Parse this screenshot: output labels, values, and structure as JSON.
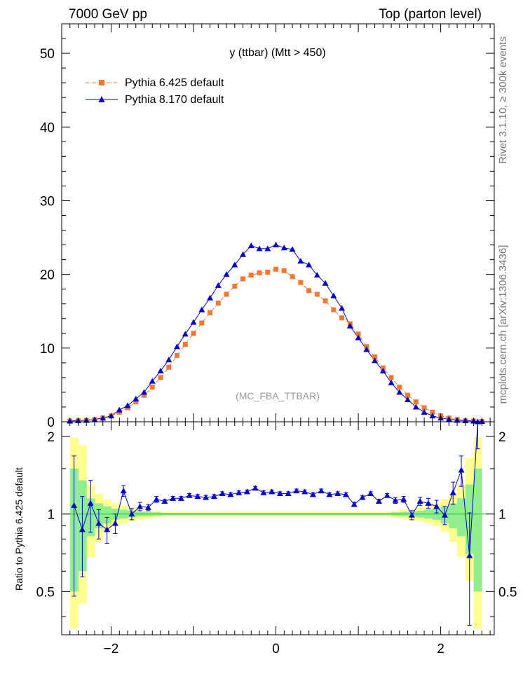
{
  "header": {
    "left": "7000 GeV pp",
    "right": "Top (parton level)"
  },
  "side_labels": {
    "rivet": "Rivet 3.1.10, ≥ 300k events",
    "mcplots": "mcplots.cern.ch [arXiv:1306.3436]"
  },
  "colors": {
    "pythia6": "#f07830",
    "pythia8": "#0000cc",
    "band_inner": "#90ee90",
    "band_outer": "#ffff90",
    "ratio_line": "#33cc33"
  },
  "chart_data": [
    {
      "type": "line",
      "title": "y (ttbar) (Mtt > 450)",
      "watermark": "(MC_FBA_TTBAR)",
      "xlim": [
        -2.6,
        2.65
      ],
      "ylim": [
        0,
        54
      ],
      "yticks": [
        0,
        10,
        20,
        30,
        40,
        50
      ],
      "yticklabels": [
        "0",
        "10",
        "20",
        "30",
        "40",
        "50"
      ],
      "legend": "top-left",
      "x": [
        -2.5,
        -2.4,
        -2.3,
        -2.2,
        -2.1,
        -2.0,
        -1.9,
        -1.8,
        -1.7,
        -1.6,
        -1.5,
        -1.4,
        -1.3,
        -1.2,
        -1.1,
        -1.0,
        -0.9,
        -0.8,
        -0.7,
        -0.6,
        -0.5,
        -0.4,
        -0.3,
        -0.2,
        -0.1,
        0.0,
        0.1,
        0.2,
        0.3,
        0.4,
        0.5,
        0.6,
        0.7,
        0.8,
        0.9,
        1.0,
        1.1,
        1.2,
        1.3,
        1.4,
        1.5,
        1.6,
        1.7,
        1.8,
        1.9,
        2.0,
        2.1,
        2.2,
        2.3,
        2.4,
        2.5
      ],
      "series": [
        {
          "name": "Pythia 6.425 default",
          "marker": "square",
          "values": [
            0.1,
            0.15,
            0.2,
            0.3,
            0.5,
            0.8,
            1.3,
            1.9,
            2.7,
            3.6,
            4.7,
            6.0,
            7.4,
            9.0,
            10.5,
            12.0,
            13.4,
            14.8,
            16.1,
            17.3,
            18.4,
            19.4,
            19.9,
            20.2,
            20.3,
            20.7,
            20.5,
            19.7,
            18.9,
            17.8,
            17.3,
            16.4,
            15.2,
            14.1,
            13.3,
            11.9,
            10.2,
            8.8,
            7.3,
            6.0,
            4.7,
            3.6,
            2.7,
            1.9,
            1.3,
            0.8,
            0.5,
            0.3,
            0.15,
            0.1,
            0.05
          ]
        },
        {
          "name": "Pythia 8.170 default",
          "marker": "triangle",
          "values": [
            0.1,
            0.15,
            0.2,
            0.3,
            0.5,
            0.8,
            1.6,
            2.2,
            3.1,
            4.0,
            5.5,
            6.9,
            8.4,
            10.2,
            11.9,
            13.5,
            15.2,
            16.8,
            18.5,
            20.0,
            21.3,
            22.7,
            23.9,
            23.5,
            23.5,
            24.0,
            23.6,
            23.4,
            21.8,
            21.3,
            19.9,
            18.8,
            17.1,
            15.4,
            13.0,
            11.4,
            9.8,
            8.3,
            6.9,
            5.3,
            4.0,
            3.0,
            2.0,
            1.3,
            0.8,
            0.5,
            0.35,
            0.2,
            0.15,
            0.1,
            0.05
          ]
        }
      ]
    },
    {
      "type": "line",
      "ylabel": "Ratio to Pythia 6.425 default",
      "xlim": [
        -2.6,
        2.65
      ],
      "ylim": [
        0.34,
        2.28
      ],
      "xticks": [
        -2,
        0,
        2
      ],
      "xticklabels": [
        "−2",
        "0",
        "2"
      ],
      "yticks": [
        0.5,
        1,
        2
      ],
      "yticklabels": [
        "0.5",
        "1",
        "2"
      ],
      "x": [
        -2.45,
        -2.35,
        -2.25,
        -2.15,
        -2.05,
        -1.95,
        -1.85,
        -1.75,
        -1.65,
        -1.55,
        -1.45,
        -1.35,
        -1.25,
        -1.15,
        -1.05,
        -0.95,
        -0.85,
        -0.75,
        -0.65,
        -0.55,
        -0.45,
        -0.35,
        -0.25,
        -0.15,
        -0.05,
        0.05,
        0.15,
        0.25,
        0.35,
        0.45,
        0.55,
        0.65,
        0.75,
        0.85,
        0.95,
        1.05,
        1.15,
        1.25,
        1.35,
        1.45,
        1.55,
        1.65,
        1.75,
        1.85,
        1.95,
        2.05,
        2.15,
        2.25,
        2.35,
        2.45
      ],
      "series": [
        {
          "name": "Pythia 8.170 default",
          "values": [
            1.08,
            0.87,
            1.1,
            0.92,
            0.87,
            0.92,
            1.23,
            1.0,
            1.07,
            1.06,
            1.14,
            1.12,
            1.15,
            1.15,
            1.18,
            1.17,
            1.16,
            1.17,
            1.2,
            1.19,
            1.21,
            1.22,
            1.26,
            1.21,
            1.22,
            1.2,
            1.2,
            1.23,
            1.22,
            1.19,
            1.23,
            1.19,
            1.2,
            1.19,
            1.09,
            1.16,
            1.2,
            1.12,
            1.18,
            1.13,
            1.14,
            0.99,
            1.12,
            1.1,
            1.07,
            0.99,
            1.21,
            1.48,
            0.69,
            2.29
          ],
          "errors": [
            0.6,
            0.3,
            0.25,
            0.12,
            0.1,
            0.08,
            0.06,
            0.05,
            0.04,
            0.03,
            0.03,
            0.02,
            0.02,
            0.02,
            0.02,
            0.02,
            0.02,
            0.02,
            0.02,
            0.02,
            0.02,
            0.02,
            0.02,
            0.02,
            0.02,
            0.02,
            0.02,
            0.02,
            0.02,
            0.02,
            0.02,
            0.02,
            0.02,
            0.02,
            0.02,
            0.02,
            0.02,
            0.02,
            0.02,
            0.03,
            0.03,
            0.04,
            0.04,
            0.05,
            0.06,
            0.08,
            0.12,
            0.2,
            0.32,
            0.5
          ]
        }
      ],
      "band_inner": [
        [
          0.5,
          1.5
        ],
        [
          0.6,
          1.35
        ],
        [
          0.82,
          1.15
        ],
        [
          0.88,
          1.1
        ],
        [
          0.92,
          1.07
        ],
        [
          0.95,
          1.05
        ],
        [
          0.96,
          1.04
        ],
        [
          0.97,
          1.03
        ],
        [
          0.98,
          1.02
        ],
        [
          0.98,
          1.02
        ],
        [
          0.985,
          1.015
        ],
        [
          0.99,
          1.01
        ],
        [
          0.99,
          1.01
        ],
        [
          0.99,
          1.01
        ],
        [
          0.99,
          1.01
        ],
        [
          0.99,
          1.01
        ],
        [
          0.99,
          1.01
        ],
        [
          0.99,
          1.01
        ],
        [
          0.99,
          1.01
        ],
        [
          0.99,
          1.01
        ],
        [
          0.99,
          1.01
        ],
        [
          0.99,
          1.01
        ],
        [
          0.99,
          1.01
        ],
        [
          0.99,
          1.01
        ],
        [
          0.99,
          1.01
        ],
        [
          0.99,
          1.01
        ],
        [
          0.99,
          1.01
        ],
        [
          0.99,
          1.01
        ],
        [
          0.99,
          1.01
        ],
        [
          0.99,
          1.01
        ],
        [
          0.99,
          1.01
        ],
        [
          0.99,
          1.01
        ],
        [
          0.99,
          1.01
        ],
        [
          0.99,
          1.01
        ],
        [
          0.99,
          1.01
        ],
        [
          0.99,
          1.01
        ],
        [
          0.99,
          1.01
        ],
        [
          0.99,
          1.01
        ],
        [
          0.99,
          1.01
        ],
        [
          0.985,
          1.015
        ],
        [
          0.98,
          1.02
        ],
        [
          0.98,
          1.02
        ],
        [
          0.97,
          1.03
        ],
        [
          0.96,
          1.04
        ],
        [
          0.95,
          1.05
        ],
        [
          0.92,
          1.07
        ],
        [
          0.88,
          1.1
        ],
        [
          0.82,
          1.15
        ],
        [
          0.7,
          1.3
        ],
        [
          0.5,
          1.5
        ]
      ],
      "band_outer": [
        [
          0.36,
          1.98
        ],
        [
          0.45,
          1.85
        ],
        [
          0.68,
          1.3
        ],
        [
          0.78,
          1.2
        ],
        [
          0.85,
          1.14
        ],
        [
          0.9,
          1.1
        ],
        [
          0.92,
          1.08
        ],
        [
          0.94,
          1.06
        ],
        [
          0.95,
          1.05
        ],
        [
          0.96,
          1.04
        ],
        [
          0.97,
          1.03
        ],
        [
          0.98,
          1.02
        ],
        [
          0.98,
          1.02
        ],
        [
          0.98,
          1.02
        ],
        [
          0.98,
          1.02
        ],
        [
          0.98,
          1.02
        ],
        [
          0.98,
          1.02
        ],
        [
          0.98,
          1.02
        ],
        [
          0.98,
          1.02
        ],
        [
          0.98,
          1.02
        ],
        [
          0.98,
          1.02
        ],
        [
          0.98,
          1.02
        ],
        [
          0.98,
          1.02
        ],
        [
          0.98,
          1.02
        ],
        [
          0.98,
          1.02
        ],
        [
          0.98,
          1.02
        ],
        [
          0.98,
          1.02
        ],
        [
          0.98,
          1.02
        ],
        [
          0.98,
          1.02
        ],
        [
          0.98,
          1.02
        ],
        [
          0.98,
          1.02
        ],
        [
          0.98,
          1.02
        ],
        [
          0.98,
          1.02
        ],
        [
          0.98,
          1.02
        ],
        [
          0.98,
          1.02
        ],
        [
          0.98,
          1.02
        ],
        [
          0.98,
          1.02
        ],
        [
          0.98,
          1.02
        ],
        [
          0.98,
          1.02
        ],
        [
          0.97,
          1.03
        ],
        [
          0.96,
          1.04
        ],
        [
          0.95,
          1.05
        ],
        [
          0.94,
          1.06
        ],
        [
          0.92,
          1.08
        ],
        [
          0.9,
          1.1
        ],
        [
          0.85,
          1.14
        ],
        [
          0.78,
          1.2
        ],
        [
          0.68,
          1.3
        ],
        [
          0.55,
          1.65
        ],
        [
          0.36,
          1.98
        ]
      ]
    }
  ]
}
